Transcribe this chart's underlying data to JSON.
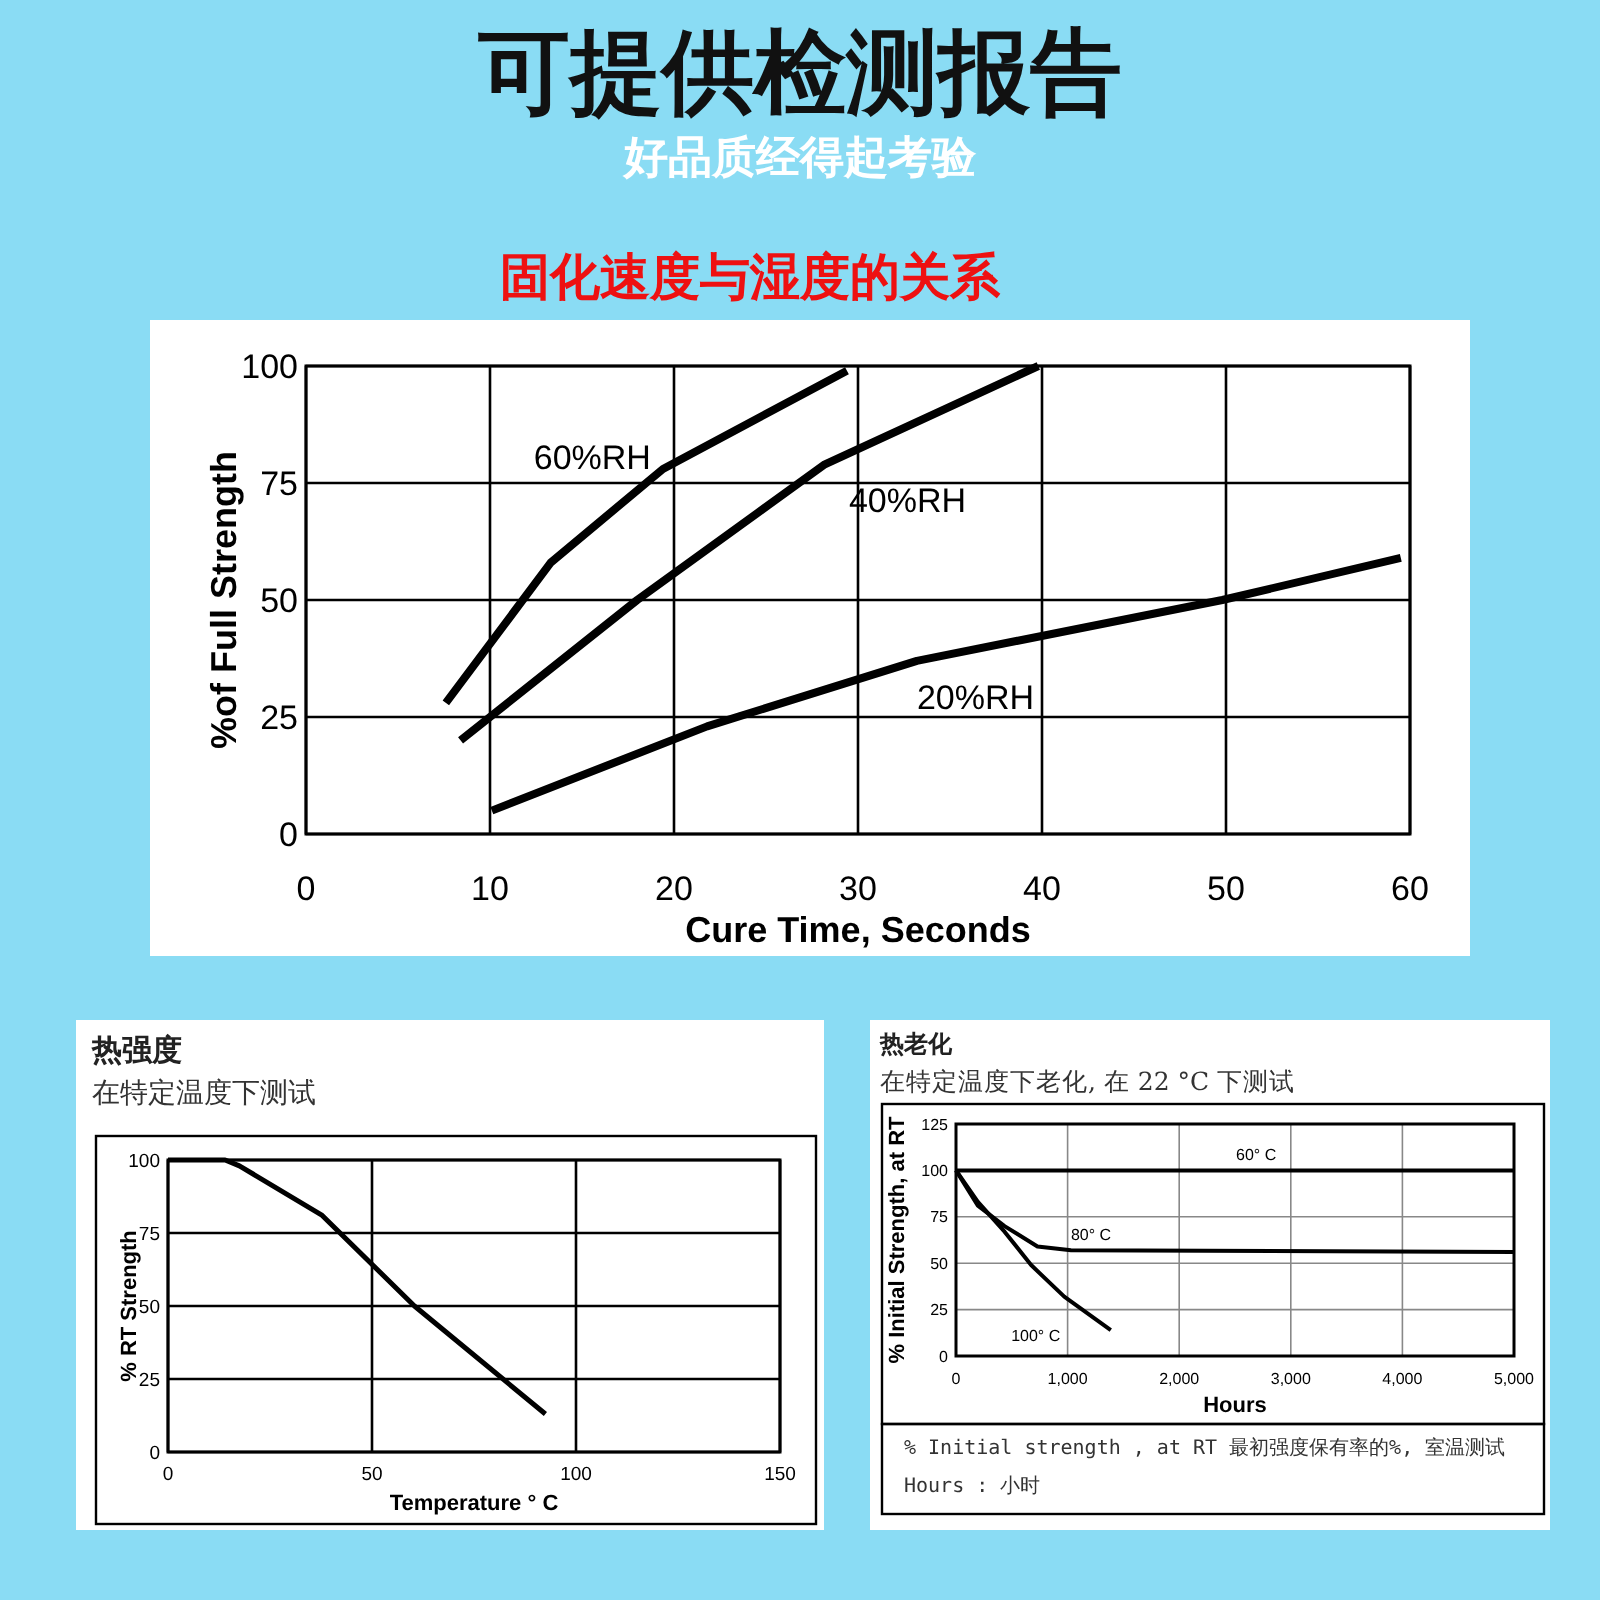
{
  "chart_data": [
    {
      "type": "line",
      "title": "固化速度与湿度的关系",
      "annotations": [
        "可提供检测报告",
        "好品质经得起考验"
      ],
      "xlabel": "Cure Time, Seconds",
      "ylabel": "%of Full Strength",
      "xlim": [
        0,
        60
      ],
      "ylim": [
        0,
        100
      ],
      "xticks": [
        0,
        10,
        20,
        30,
        40,
        50,
        60
      ],
      "yticks": [
        0,
        25,
        50,
        75,
        100
      ],
      "grid": true,
      "marker": "none",
      "series": [
        {
          "name": "60%RH",
          "color": "#000000",
          "x": [
            7.6,
            13.3,
            19.4,
            29.4
          ],
          "values": [
            28,
            58,
            78,
            99
          ]
        },
        {
          "name": "40%RH",
          "color": "#000000",
          "x": [
            8.4,
            18,
            28.2,
            39.8
          ],
          "values": [
            20,
            50,
            79,
            100
          ]
        },
        {
          "name": "20%RH",
          "color": "#000000",
          "x": [
            10.1,
            21.8,
            33.2,
            49.8,
            59.5
          ],
          "values": [
            5,
            23,
            37,
            50,
            59
          ]
        }
      ]
    },
    {
      "type": "line",
      "title": "热强度",
      "subtitle": "在特定温度下测试",
      "xlabel": "Temperature ° C",
      "ylabel": "% RT Strength",
      "xlim": [
        0,
        150
      ],
      "ylim": [
        0,
        100
      ],
      "xticks": [
        0,
        50,
        100,
        150
      ],
      "yticks": [
        0,
        25,
        50,
        75,
        100
      ],
      "grid": true,
      "marker": "none",
      "series": [
        {
          "color": "#000000",
          "x": [
            0,
            14,
            17.5,
            37.8,
            60.4,
            92.5
          ],
          "values": [
            100,
            100,
            98,
            81,
            50,
            13
          ]
        }
      ]
    },
    {
      "type": "line",
      "title": "热老化",
      "subtitle": "在特定温度下老化, 在 22 °C 下测试",
      "xlabel": "Hours",
      "ylabel": "% Initial Strength, at RT",
      "annotations": [
        "% Initial strength , at RT 最初强度保有率的%, 室温测试",
        "Hours : 小时"
      ],
      "xlim": [
        0,
        5000
      ],
      "ylim": [
        0,
        125
      ],
      "xticks": [
        0,
        {
          "value": 1000,
          "label": "1,000"
        },
        {
          "value": 2000,
          "label": "2,000"
        },
        {
          "value": 3000,
          "label": "3,000"
        },
        {
          "value": 4000,
          "label": "4,000"
        },
        {
          "value": 5000,
          "label": "5,000"
        }
      ],
      "yticks": [
        0,
        25,
        50,
        75,
        100,
        125
      ],
      "grid": true,
      "marker": "none",
      "series": [
        {
          "name": "60° C",
          "color": "#000000",
          "x": [
            0,
            5000
          ],
          "values": [
            100,
            100
          ]
        },
        {
          "name": "80° C",
          "color": "#000000",
          "x": [
            0,
            196,
            435,
            730,
            1030,
            5000
          ],
          "values": [
            100,
            81,
            70,
            59,
            57,
            56
          ]
        },
        {
          "name": "100° C",
          "color": "#000000",
          "x": [
            0,
            196,
            435,
            673,
            970,
            1387
          ],
          "values": [
            100,
            83,
            67,
            49,
            32,
            14
          ]
        }
      ]
    }
  ]
}
